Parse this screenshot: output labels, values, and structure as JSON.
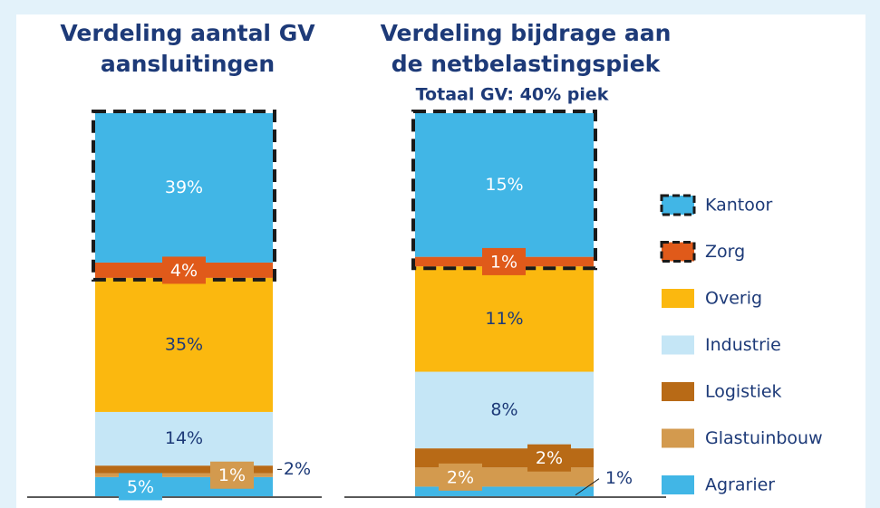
{
  "chart_data": [
    {
      "type": "stacked_bar",
      "title": [
        "Verdeling aantal GV",
        "aansluitingen"
      ],
      "values": [
        5,
        1,
        2,
        14,
        35,
        4,
        39
      ],
      "value_labels": [
        "5%",
        "1%",
        "2%",
        "14%",
        "35%",
        "4%",
        "39%"
      ],
      "ylim": [
        0,
        100
      ]
    },
    {
      "type": "stacked_bar",
      "title": [
        "Verdeling bijdrage aan",
        "de netbelastingspiek"
      ],
      "subtitle": "Totaal GV: 40% piek",
      "values": [
        1,
        2,
        2,
        8,
        11,
        1,
        15
      ],
      "value_labels": [
        "1%",
        "2%",
        "2%",
        "8%",
        "11%",
        "1%",
        "15%"
      ],
      "ylim": [
        0,
        40
      ]
    }
  ],
  "legend": {
    "names": [
      "Agrarier",
      "Glastuinbouw",
      "Logistiek",
      "Industrie",
      "Overig",
      "Zorg",
      "Kantoor"
    ],
    "colors": [
      "#41b6e6",
      "#d39a4e",
      "#b86a16",
      "#c5e6f6",
      "#fbb80f",
      "#e05a1a",
      "#41b6e6"
    ]
  }
}
